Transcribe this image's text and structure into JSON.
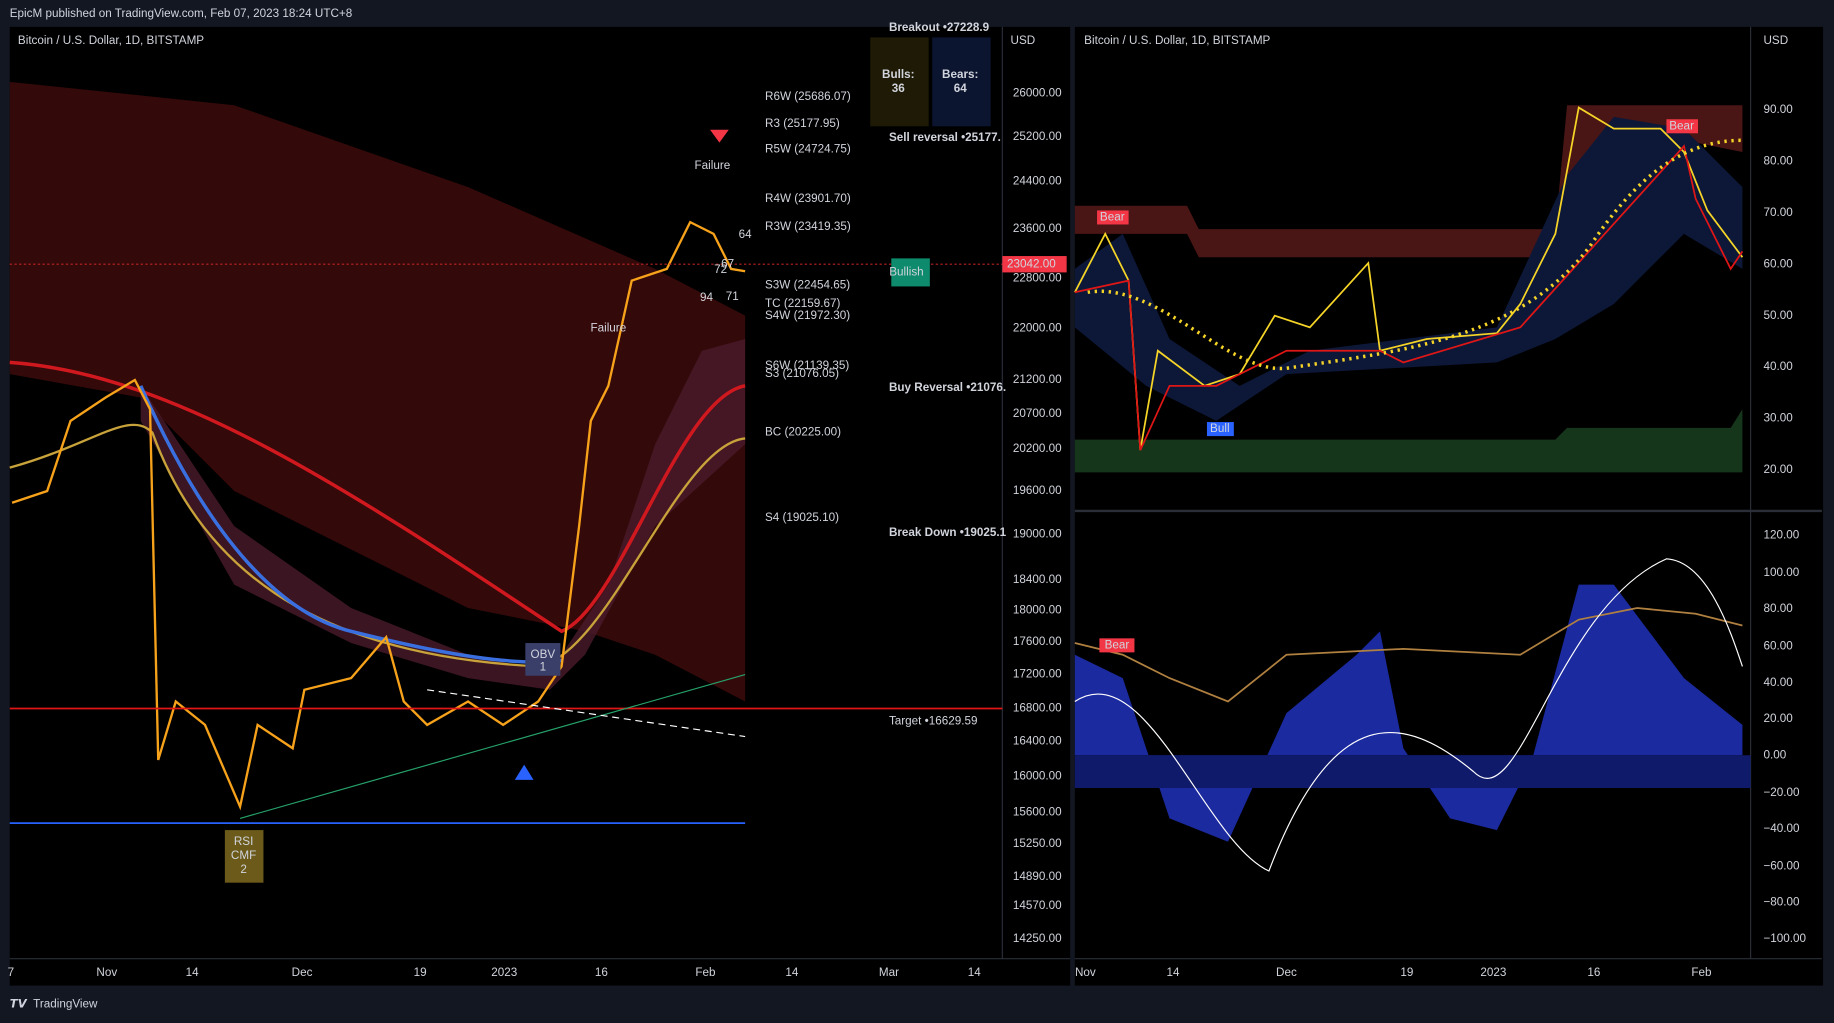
{
  "header": "EpicM published on TradingView.com, Feb 07, 2023 18:24 UTC+8",
  "footer": "TradingView",
  "left_panel": {
    "symbol": "Bitcoin / U.S. Dollar, 1D, BITSTAMP",
    "currency": "USD",
    "last_price": "23042.00",
    "price_axis": [
      "26000.00",
      "25200.00",
      "24400.00",
      "23600.00",
      "22800.00",
      "22000.00",
      "21200.00",
      "20700.00",
      "20200.00",
      "19600.00",
      "19000.00",
      "18400.00",
      "18000.00",
      "17600.00",
      "17200.00",
      "16800.00",
      "16400.00",
      "16000.00",
      "15600.00",
      "15250.00",
      "14890.00",
      "14570.00",
      "14250.00"
    ],
    "time_axis": [
      "7",
      "Nov",
      "14",
      "Dec",
      "19",
      "2023",
      "16",
      "Feb",
      "14",
      "Mar",
      "14"
    ],
    "levels": [
      "R6W (25686.07)",
      "R3 (25177.95)",
      "R5W (24724.75)",
      "R4W (23901.70)",
      "R3W (23419.35)",
      "S3W (22454.65)",
      "TC (22159.67)",
      "S4W (21972.30)",
      "S6W (21139.35)",
      "S3 (21076.05)",
      "BC (20225.00)",
      "S4 (19025.10)"
    ],
    "signals": [
      "Breakout •27228.9",
      "Sell reversal •25177.",
      "Buy Reversal •21076.",
      "Break Down •19025.1",
      "Target •16629.59"
    ],
    "failure_labels": [
      "Failure",
      "Failure"
    ],
    "bulls_label": "Bulls:",
    "bulls_value": "36",
    "bears_label": "Bears:",
    "bears_value": "64",
    "bullish": "Bullish",
    "obv": [
      "OBV",
      "1"
    ],
    "rsi_cmf": [
      "RSI",
      "CMF",
      "2"
    ],
    "counts": [
      "64",
      "72",
      "67",
      "94",
      "71"
    ]
  },
  "right_panel": {
    "symbol": "Bitcoin / U.S. Dollar, 1D, BITSTAMP",
    "currency": "USD",
    "top_axis": [
      "90.00",
      "80.00",
      "70.00",
      "60.00",
      "50.00",
      "40.00",
      "30.00",
      "20.00"
    ],
    "bottom_axis": [
      "120.00",
      "100.00",
      "80.00",
      "60.00",
      "40.00",
      "20.00",
      "0.00",
      "−20.00",
      "−40.00",
      "−60.00",
      "−80.00",
      "−100.00"
    ],
    "time_axis": [
      "Nov",
      "14",
      "Dec",
      "19",
      "2023",
      "16",
      "Feb"
    ],
    "tags": [
      "Bear",
      "Bull",
      "Bear",
      "Bear"
    ]
  }
}
